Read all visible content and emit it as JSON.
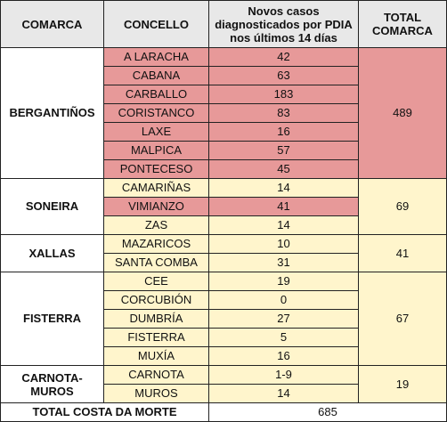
{
  "headers": {
    "comarca": "COMARCA",
    "concello": "CONCELLO",
    "novos_line1": "Novos casos",
    "novos_line2": "diagnosticados por PDIA",
    "novos_line3": "nos últimos 14 días",
    "total_line1": "TOTAL",
    "total_line2": "COMARCA"
  },
  "groups": [
    {
      "comarca": "BERGANTIÑOS",
      "total": "489",
      "total_color": "red",
      "rows": [
        {
          "concello": "A LARACHA",
          "casos": "42",
          "color": "red"
        },
        {
          "concello": "CABANA",
          "casos": "63",
          "color": "red"
        },
        {
          "concello": "CARBALLO",
          "casos": "183",
          "color": "red"
        },
        {
          "concello": "CORISTANCO",
          "casos": "83",
          "color": "red"
        },
        {
          "concello": "LAXE",
          "casos": "16",
          "color": "red"
        },
        {
          "concello": "MALPICA",
          "casos": "57",
          "color": "red"
        },
        {
          "concello": "PONTECESO",
          "casos": "45",
          "color": "red"
        }
      ]
    },
    {
      "comarca": "SONEIRA",
      "total": "69",
      "total_color": "yellow",
      "rows": [
        {
          "concello": "CAMARIÑAS",
          "casos": "14",
          "color": "yellow"
        },
        {
          "concello": "VIMIANZO",
          "casos": "41",
          "color": "red"
        },
        {
          "concello": "ZAS",
          "casos": "14",
          "color": "yellow"
        }
      ]
    },
    {
      "comarca": "XALLAS",
      "total": "41",
      "total_color": "yellow",
      "rows": [
        {
          "concello": "MAZARICOS",
          "casos": "10",
          "color": "yellow"
        },
        {
          "concello": "SANTA COMBA",
          "casos": "31",
          "color": "yellow"
        }
      ]
    },
    {
      "comarca": "FISTERRA",
      "total": "67",
      "total_color": "yellow",
      "rows": [
        {
          "concello": "CEE",
          "casos": "19",
          "color": "yellow"
        },
        {
          "concello": "CORCUBIÓN",
          "casos": "0",
          "color": "yellow"
        },
        {
          "concello": "DUMBRÍA",
          "casos": "27",
          "color": "yellow"
        },
        {
          "concello": "FISTERRA",
          "casos": "5",
          "color": "yellow"
        },
        {
          "concello": "MUXÍA",
          "casos": "16",
          "color": "yellow"
        }
      ]
    },
    {
      "comarca": "CARNOTA-MUROS",
      "comarca_line1": "CARNOTA-",
      "comarca_line2": "MUROS",
      "total": "19",
      "total_color": "yellow",
      "rows": [
        {
          "concello": "CARNOTA",
          "casos": "1-9",
          "color": "yellow"
        },
        {
          "concello": "MUROS",
          "casos": "14",
          "color": "yellow"
        }
      ]
    }
  ],
  "footer": {
    "label": "TOTAL COSTA DA MORTE",
    "value": "685"
  },
  "colors": {
    "red": "#e79999",
    "yellow": "#fff5cc",
    "header": "#e8e8e8",
    "border": "#222222"
  }
}
